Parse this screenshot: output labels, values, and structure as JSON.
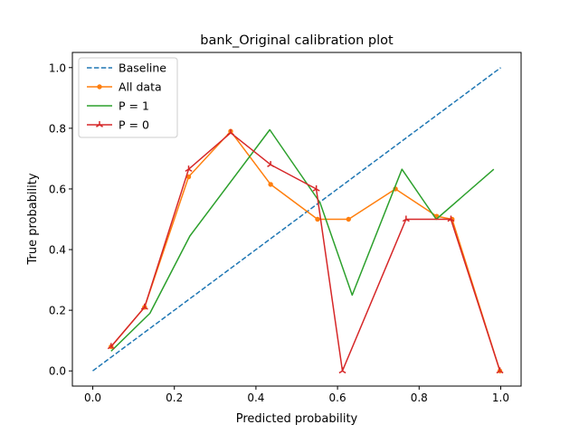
{
  "chart_data": {
    "type": "line",
    "title": "bank_Original calibration plot",
    "xlabel": "Predicted probability",
    "ylabel": "True probability",
    "xlim": [
      -0.05,
      1.05
    ],
    "ylim": [
      -0.05,
      1.05
    ],
    "xticks": [
      "0.0",
      "0.2",
      "0.4",
      "0.6",
      "0.8",
      "1.0"
    ],
    "yticks": [
      "0.0",
      "0.2",
      "0.4",
      "0.6",
      "0.8",
      "1.0"
    ],
    "grid": false,
    "legend_position": "upper-left",
    "series": [
      {
        "name": "Baseline",
        "color": "#1f77b4",
        "line_style": "dashed",
        "marker": "none",
        "x": [
          0.0,
          1.0
        ],
        "y": [
          0.0,
          1.0
        ]
      },
      {
        "name": "All data",
        "color": "#ff7f0e",
        "line_style": "solid",
        "marker": "dot",
        "x": [
          0.045,
          0.127,
          0.235,
          0.338,
          0.436,
          0.551,
          0.627,
          0.742,
          0.843,
          0.881,
          0.998
        ],
        "y": [
          0.08,
          0.21,
          0.64,
          0.79,
          0.615,
          0.5,
          0.5,
          0.6,
          0.51,
          0.5,
          0.0
        ]
      },
      {
        "name": "P = 1",
        "color": "#2ca02c",
        "line_style": "solid",
        "marker": "none",
        "x": [
          0.045,
          0.14,
          0.238,
          0.434,
          0.557,
          0.636,
          0.758,
          0.842,
          0.983
        ],
        "y": [
          0.065,
          0.19,
          0.445,
          0.795,
          0.555,
          0.25,
          0.665,
          0.5,
          0.665
        ]
      },
      {
        "name": "P = 0",
        "color": "#d62728",
        "line_style": "solid",
        "marker": "tri",
        "x": [
          0.045,
          0.127,
          0.235,
          0.338,
          0.436,
          0.548,
          0.612,
          0.768,
          0.878,
          0.998
        ],
        "y": [
          0.08,
          0.21,
          0.665,
          0.785,
          0.68,
          0.6,
          0.0,
          0.5,
          0.5,
          0.0
        ]
      }
    ]
  }
}
